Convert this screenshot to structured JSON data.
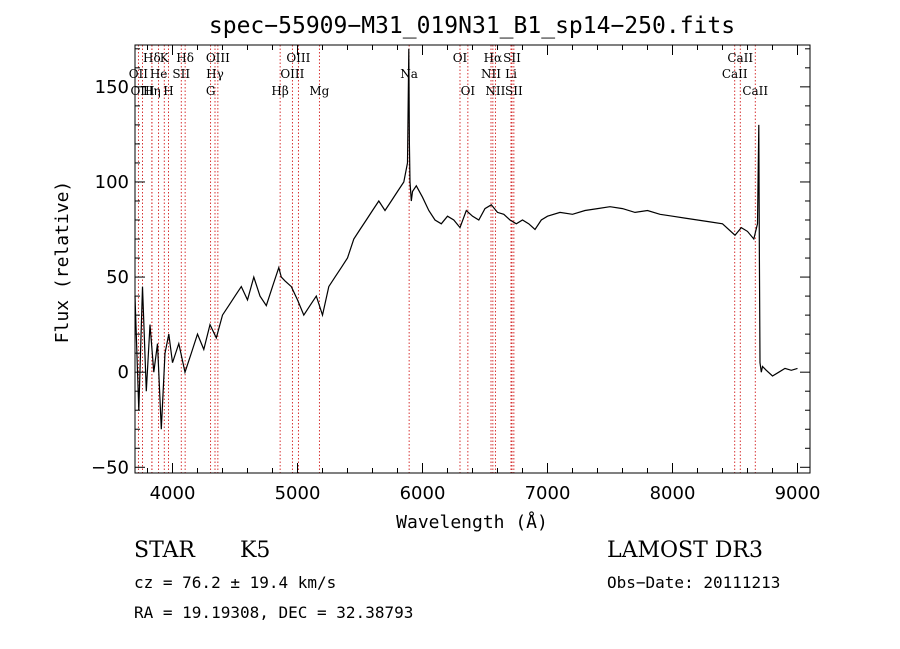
{
  "chart_data": {
    "type": "line",
    "title": "spec−55909−M31_019N31_B1_sp14−250.fits",
    "xlabel": "Wavelength (Å)",
    "ylabel": "Flux (relative)",
    "xlim": [
      3700,
      9100
    ],
    "ylim": [
      -53,
      172
    ],
    "xticks": [
      4000,
      5000,
      6000,
      7000,
      8000,
      9000
    ],
    "yticks": [
      -50,
      0,
      50,
      100,
      150
    ],
    "grid": false,
    "series": [
      {
        "x": [
          3700,
          3730,
          3760,
          3790,
          3820,
          3850,
          3880,
          3910,
          3940,
          3970,
          4000,
          4050,
          4100,
          4150,
          4200,
          4250,
          4300,
          4350,
          4400,
          4450,
          4500,
          4550,
          4600,
          4650,
          4700,
          4750,
          4800,
          4850,
          4870,
          4900,
          4950,
          5000,
          5050,
          5100,
          5150,
          5200,
          5250,
          5300,
          5350,
          5400,
          5450,
          5500,
          5550,
          5600,
          5650,
          5700,
          5750,
          5800,
          5850,
          5880,
          5890,
          5895,
          5900,
          5910,
          5920,
          5950,
          6000,
          6050,
          6100,
          6150,
          6200,
          6250,
          6300,
          6350,
          6400,
          6450,
          6500,
          6550,
          6600,
          6650,
          6700,
          6750,
          6800,
          6850,
          6900,
          6950,
          7000,
          7100,
          7200,
          7300,
          7400,
          7500,
          7600,
          7700,
          7800,
          7900,
          8000,
          8100,
          8200,
          8300,
          8400,
          8500,
          8550,
          8600,
          8650,
          8680,
          8690,
          8695,
          8700,
          8710,
          8720,
          8750,
          8800,
          8850,
          8900,
          8950,
          9000
        ],
        "y": [
          40,
          -20,
          45,
          -10,
          25,
          0,
          15,
          -30,
          10,
          20,
          5,
          15,
          0,
          10,
          20,
          12,
          25,
          18,
          30,
          35,
          40,
          45,
          38,
          50,
          40,
          35,
          45,
          55,
          50,
          48,
          45,
          38,
          30,
          35,
          40,
          30,
          45,
          50,
          55,
          60,
          70,
          75,
          80,
          85,
          90,
          85,
          90,
          95,
          100,
          110,
          170,
          120,
          100,
          90,
          95,
          98,
          92,
          85,
          80,
          78,
          82,
          80,
          76,
          85,
          82,
          80,
          86,
          88,
          84,
          83,
          80,
          78,
          80,
          78,
          75,
          80,
          82,
          84,
          83,
          85,
          86,
          87,
          86,
          84,
          85,
          83,
          82,
          81,
          80,
          79,
          78,
          72,
          76,
          74,
          70,
          78,
          130,
          60,
          5,
          0,
          3,
          1,
          -2,
          0,
          2,
          1,
          2
        ]
      }
    ],
    "line_markers": [
      {
        "label": "Hδ",
        "x": 3835,
        "row": 1
      },
      {
        "label": "OII",
        "x": 3727,
        "row": 2
      },
      {
        "label": "OIII",
        "x": 3760,
        "row": 3
      },
      {
        "label": "K",
        "x": 3934,
        "row": 1
      },
      {
        "label": "He",
        "x": 3889,
        "row": 2
      },
      {
        "label": "Hη",
        "x": 3835,
        "row": 3
      },
      {
        "label": "SII",
        "x": 4070,
        "row": 2
      },
      {
        "label": "H",
        "x": 3968,
        "row": 3
      },
      {
        "label": "Hδ",
        "x": 4101,
        "row": 1
      },
      {
        "label": "OIII",
        "x": 4363,
        "row": 1
      },
      {
        "label": "Hγ",
        "x": 4340,
        "row": 2
      },
      {
        "label": "G",
        "x": 4305,
        "row": 3
      },
      {
        "label": "OIII",
        "x": 5007,
        "row": 1
      },
      {
        "label": "OIII",
        "x": 4959,
        "row": 2
      },
      {
        "label": "Hβ",
        "x": 4861,
        "row": 3
      },
      {
        "label": "Mg",
        "x": 5175,
        "row": 3
      },
      {
        "label": "Na",
        "x": 5893,
        "row": 2
      },
      {
        "label": "OI",
        "x": 6300,
        "row": 1
      },
      {
        "label": "OI",
        "x": 6363,
        "row": 3
      },
      {
        "label": "Hα",
        "x": 6563,
        "row": 1
      },
      {
        "label": "SII",
        "x": 6716,
        "row": 1
      },
      {
        "label": "NII",
        "x": 6548,
        "row": 2
      },
      {
        "label": "Li",
        "x": 6708,
        "row": 2
      },
      {
        "label": "NII",
        "x": 6583,
        "row": 3
      },
      {
        "label": "SII",
        "x": 6731,
        "row": 3
      },
      {
        "label": "CaII",
        "x": 8542,
        "row": 1
      },
      {
        "label": "CaII",
        "x": 8498,
        "row": 2
      },
      {
        "label": "CaII",
        "x": 8662,
        "row": 3
      }
    ],
    "marker_color": "#cc0000"
  },
  "info": {
    "object_class": "STAR",
    "subclass": "K5",
    "survey": "LAMOST DR3",
    "cz": "cz = 76.2 ± 19.4 km/s",
    "obs_date": "Obs−Date: 20111213",
    "radec": "RA =  19.19308, DEC =  32.38793"
  }
}
